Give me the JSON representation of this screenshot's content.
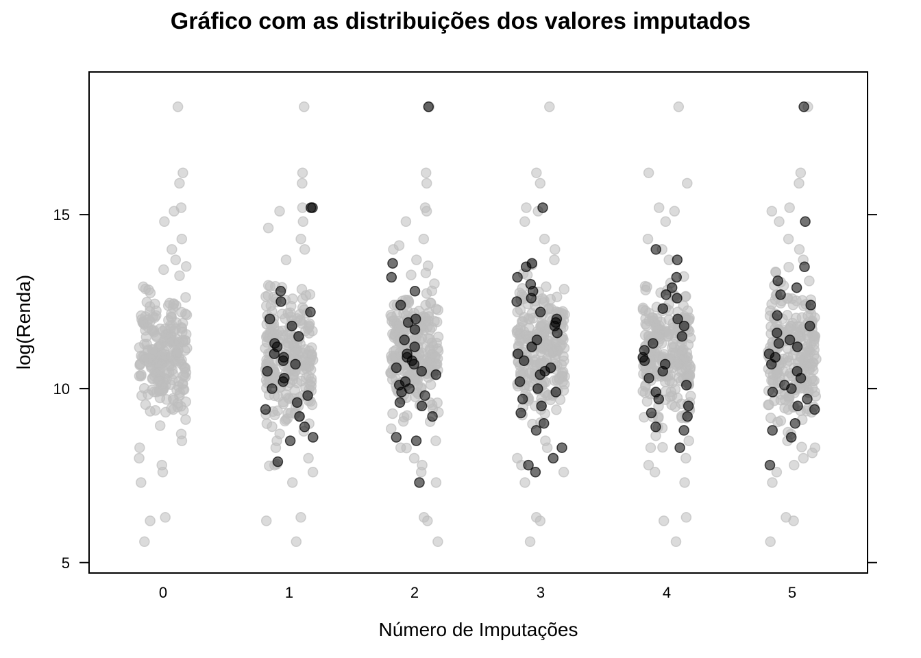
{
  "chart_data": {
    "type": "scatter",
    "title": "Gráfico com as distribuições dos valores imputados",
    "xlabel": "Número de Imputações",
    "ylabel": "log(Renda)",
    "x_categories": [
      "0",
      "1",
      "2",
      "3",
      "4",
      "5"
    ],
    "y_ticks": [
      "5",
      "10",
      "15"
    ],
    "ylim": [
      4.7,
      19.1
    ],
    "grid": false,
    "colors": {
      "observed": "#bebebe",
      "imputed": "#000000",
      "frame": "#000000"
    },
    "observed_distribution": {
      "description_free_values": true,
      "outliers_high": [
        18.1
      ],
      "common_high": [
        16.2,
        15.9,
        15.2,
        15.1,
        14.8,
        14.3,
        14.0,
        13.7
      ],
      "common_low": [
        8.5,
        8.3,
        8.0,
        7.8,
        7.6,
        7.3,
        6.3,
        6.2,
        5.6
      ],
      "center": 11.0
    },
    "imputed_series": [
      {
        "x": "1",
        "values": [
          15.2,
          15.2,
          12.8,
          12.5,
          12.2,
          11.8,
          11.5,
          11.2,
          11.0,
          10.9,
          10.8,
          10.5,
          10.3,
          10.2,
          10.0,
          9.8,
          9.6,
          9.4,
          9.2,
          8.9,
          8.6,
          8.5,
          7.9,
          11.3,
          12.0,
          10.7
        ]
      },
      {
        "x": "2",
        "values": [
          18.1,
          13.6,
          13.2,
          12.8,
          12.4,
          12.0,
          11.7,
          11.4,
          11.2,
          11.0,
          10.9,
          10.8,
          10.7,
          10.5,
          10.4,
          10.2,
          10.0,
          9.8,
          9.6,
          9.5,
          9.2,
          8.6,
          8.5,
          7.3,
          11.9,
          10.6,
          10.1,
          9.9
        ]
      },
      {
        "x": "3",
        "values": [
          15.2,
          13.6,
          13.5,
          13.2,
          13.0,
          12.8,
          12.5,
          12.2,
          12.0,
          11.8,
          11.6,
          11.4,
          11.2,
          11.0,
          10.8,
          10.6,
          10.4,
          10.2,
          10.0,
          9.9,
          9.7,
          9.5,
          9.3,
          9.0,
          8.8,
          8.3,
          8.0,
          7.8,
          7.6,
          11.9,
          10.5,
          12.6
        ]
      },
      {
        "x": "4",
        "values": [
          14.0,
          13.7,
          13.2,
          12.7,
          12.6,
          12.3,
          12.0,
          11.8,
          11.5,
          11.3,
          11.1,
          10.9,
          10.7,
          10.5,
          10.3,
          10.1,
          9.9,
          9.7,
          9.5,
          9.3,
          9.2,
          8.9,
          8.8,
          8.3,
          12.9,
          10.8
        ]
      },
      {
        "x": "5",
        "values": [
          18.1,
          14.8,
          13.5,
          13.1,
          12.7,
          12.4,
          12.1,
          11.8,
          11.6,
          11.4,
          11.2,
          11.0,
          10.9,
          10.7,
          10.5,
          10.3,
          10.1,
          9.9,
          9.7,
          9.5,
          9.4,
          9.0,
          8.8,
          8.6,
          7.8,
          12.9,
          11.3,
          10.0
        ]
      }
    ]
  }
}
